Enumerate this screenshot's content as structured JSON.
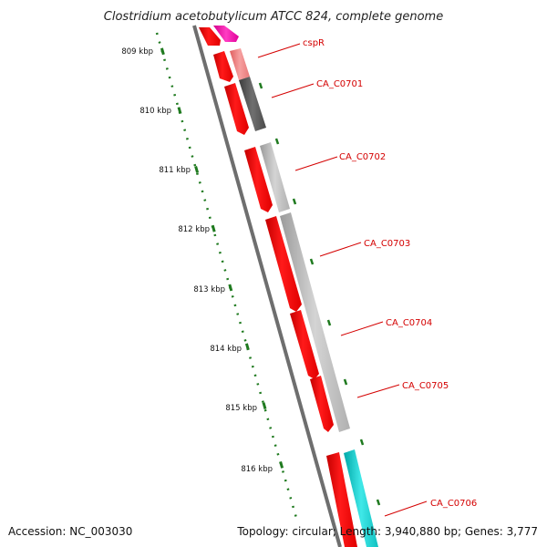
{
  "title": "Clostridium acetobutylicum ATCC 824, complete genome",
  "accession": "Accession: NC_003030",
  "summary": "Topology: circular; Length: 3,940,880 bp; Genes: 3,777",
  "ticks": [
    "809 kbp",
    "810 kbp",
    "811 kbp",
    "812 kbp",
    "813 kbp",
    "814 kbp",
    "815 kbp",
    "816 kbp"
  ],
  "genes": [
    "cspR",
    "CA_C0701",
    "CA_C0702",
    "CA_C0703",
    "CA_C0704",
    "CA_C0705",
    "CA_C0706"
  ],
  "colors": {
    "backbone": "#7a7a7a",
    "cds": "#ff0000",
    "label": "#d40000",
    "tick": "#1f7a1f",
    "magenta": "#ff1fb4",
    "gray_dark": "#555555",
    "gray_light": "#bdbdbd",
    "salmon": "#f08080",
    "cyan": "#22d3d3"
  }
}
